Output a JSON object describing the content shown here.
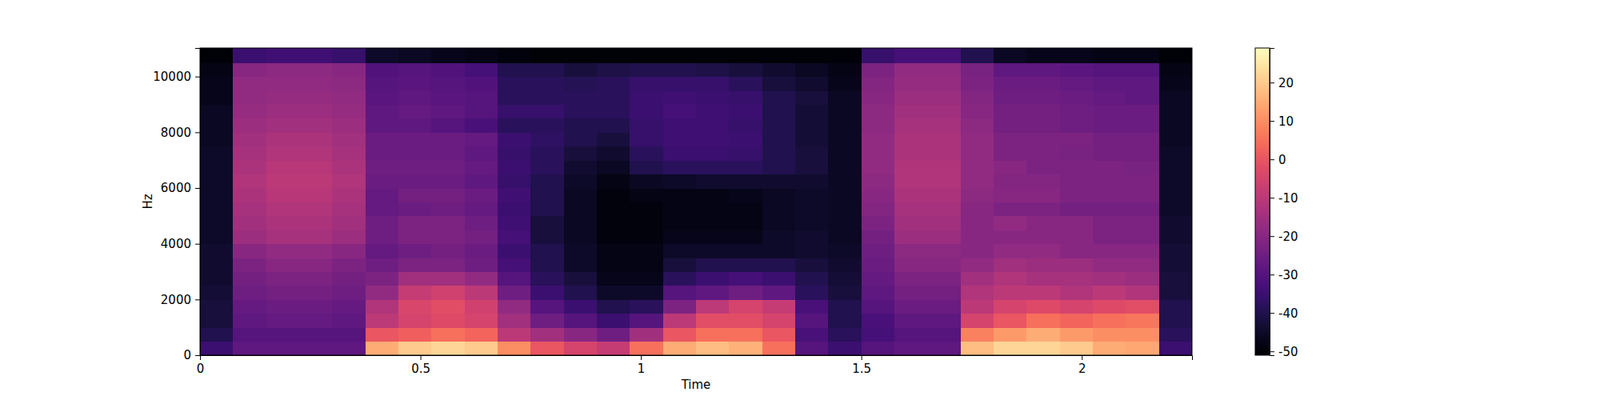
{
  "chart_data": {
    "type": "heatmap",
    "xlabel": "Time",
    "ylabel": "Hz",
    "color": "magma",
    "xlim": [
      0,
      2.25
    ],
    "xticks": [
      0,
      0.5,
      1,
      1.5,
      2
    ],
    "ylim": [
      0,
      11025
    ],
    "yticks": [
      0,
      2000,
      4000,
      6000,
      8000,
      10000
    ],
    "x_bins": [
      0,
      0.075,
      0.15,
      0.225,
      0.3,
      0.375,
      0.45,
      0.525,
      0.6,
      0.675,
      0.75,
      0.825,
      0.9,
      0.975,
      1.05,
      1.125,
      1.2,
      1.275,
      1.35,
      1.425,
      1.5,
      1.575,
      1.65,
      1.725,
      1.8,
      1.875,
      1.95,
      2.025,
      2.1,
      2.175,
      2.25
    ],
    "y_bins": [
      0,
      500,
      1000,
      1500,
      2000,
      2500,
      3000,
      3500,
      4000,
      4500,
      5000,
      5500,
      6000,
      6500,
      7000,
      7500,
      8000,
      8500,
      9000,
      9500,
      10000,
      10500,
      11025
    ],
    "z": [
      [
        -35,
        -28,
        -28,
        -28,
        -28,
        15,
        20,
        22,
        20,
        10,
        0,
        -5,
        -8,
        5,
        15,
        18,
        16,
        5,
        -30,
        -35,
        -30,
        -28,
        -28,
        18,
        22,
        22,
        20,
        15,
        14,
        -35
      ],
      [
        -40,
        -30,
        -30,
        -30,
        -30,
        0,
        2,
        5,
        3,
        -10,
        -15,
        -20,
        -25,
        -15,
        0,
        5,
        5,
        0,
        -32,
        -38,
        -33,
        -30,
        -30,
        8,
        12,
        15,
        12,
        10,
        10,
        -38
      ],
      [
        -42,
        -28,
        -27,
        -27,
        -28,
        -10,
        -5,
        -3,
        -5,
        -15,
        -25,
        -30,
        -35,
        -30,
        -10,
        -2,
        -2,
        -5,
        -30,
        -40,
        -32,
        -28,
        -28,
        -5,
        0,
        5,
        3,
        5,
        6,
        -40
      ],
      [
        -42,
        -27,
        -26,
        -26,
        -27,
        -12,
        -4,
        -2,
        -6,
        -18,
        -30,
        -35,
        -40,
        -38,
        -22,
        -10,
        -5,
        -8,
        -32,
        -40,
        -30,
        -26,
        -26,
        -10,
        -5,
        -3,
        -5,
        -3,
        -2,
        -40
      ],
      [
        -43,
        -25,
        -24,
        -24,
        -25,
        -18,
        -8,
        -6,
        -10,
        -25,
        -35,
        -40,
        -45,
        -45,
        -30,
        -28,
        -25,
        -28,
        -38,
        -42,
        -28,
        -24,
        -24,
        -12,
        -10,
        -10,
        -12,
        -10,
        -12,
        -42
      ],
      [
        -44,
        -24,
        -22,
        -22,
        -24,
        -22,
        -15,
        -15,
        -18,
        -30,
        -38,
        -42,
        -47,
        -47,
        -38,
        -35,
        -33,
        -35,
        -40,
        -43,
        -27,
        -22,
        -22,
        -15,
        -12,
        -14,
        -14,
        -15,
        -16,
        -42
      ],
      [
        -44,
        -22,
        -20,
        -20,
        -22,
        -25,
        -22,
        -22,
        -25,
        -33,
        -40,
        -45,
        -48,
        -48,
        -42,
        -40,
        -40,
        -40,
        -42,
        -44,
        -26,
        -20,
        -20,
        -18,
        -15,
        -16,
        -16,
        -18,
        -18,
        -43
      ],
      [
        -44,
        -20,
        -18,
        -18,
        -20,
        -27,
        -25,
        -24,
        -26,
        -35,
        -40,
        -45,
        -48,
        -48,
        -45,
        -45,
        -45,
        -45,
        -44,
        -45,
        -25,
        -19,
        -19,
        -20,
        -18,
        -18,
        -20,
        -20,
        -20,
        -43
      ],
      [
        -45,
        -16,
        -14,
        -14,
        -16,
        -25,
        -22,
        -22,
        -24,
        -33,
        -42,
        -46,
        -49,
        -49,
        -47,
        -47,
        -47,
        -45,
        -44,
        -46,
        -24,
        -16,
        -16,
        -20,
        -20,
        -20,
        -20,
        -22,
        -22,
        -44
      ],
      [
        -45,
        -15,
        -13,
        -13,
        -15,
        -25,
        -22,
        -22,
        -25,
        -34,
        -42,
        -46,
        -49,
        -49,
        -48,
        -48,
        -48,
        -46,
        -45,
        -46,
        -22,
        -15,
        -15,
        -20,
        -18,
        -20,
        -20,
        -22,
        -22,
        -44
      ],
      [
        -45,
        -14,
        -12,
        -12,
        -14,
        -27,
        -26,
        -25,
        -27,
        -35,
        -40,
        -46,
        -49,
        -49,
        -48,
        -48,
        -48,
        -46,
        -45,
        -46,
        -21,
        -14,
        -14,
        -20,
        -22,
        -22,
        -24,
        -24,
        -24,
        -45
      ],
      [
        -45,
        -13,
        -11,
        -11,
        -13,
        -27,
        -24,
        -24,
        -26,
        -34,
        -40,
        -46,
        -49,
        -48,
        -48,
        -48,
        -47,
        -46,
        -45,
        -46,
        -20,
        -13,
        -13,
        -19,
        -20,
        -20,
        -22,
        -22,
        -22,
        -45
      ],
      [
        -45,
        -12,
        -10,
        -10,
        -12,
        -26,
        -26,
        -26,
        -28,
        -36,
        -40,
        -45,
        -48,
        -46,
        -45,
        -44,
        -44,
        -44,
        -44,
        -46,
        -19,
        -12,
        -12,
        -18,
        -21,
        -21,
        -22,
        -22,
        -22,
        -45
      ],
      [
        -45,
        -13,
        -11,
        -11,
        -13,
        -25,
        -25,
        -25,
        -27,
        -35,
        -38,
        -44,
        -46,
        -40,
        -38,
        -38,
        -38,
        -40,
        -42,
        -46,
        -18,
        -12,
        -12,
        -18,
        -20,
        -22,
        -22,
        -22,
        -23,
        -45
      ],
      [
        -45,
        -14,
        -12,
        -12,
        -14,
        -26,
        -26,
        -26,
        -28,
        -36,
        -38,
        -42,
        -44,
        -38,
        -35,
        -35,
        -36,
        -40,
        -42,
        -46,
        -18,
        -13,
        -13,
        -18,
        -22,
        -22,
        -23,
        -24,
        -24,
        -45
      ],
      [
        -46,
        -15,
        -13,
        -13,
        -15,
        -26,
        -26,
        -26,
        -27,
        -35,
        -37,
        -40,
        -42,
        -36,
        -34,
        -34,
        -35,
        -40,
        -43,
        -46,
        -18,
        -13,
        -13,
        -18,
        -22,
        -22,
        -22,
        -24,
        -24,
        -46
      ],
      [
        -46,
        -16,
        -15,
        -15,
        -16,
        -28,
        -28,
        -30,
        -32,
        -38,
        -38,
        -40,
        -40,
        -36,
        -34,
        -34,
        -36,
        -40,
        -43,
        -46,
        -19,
        -14,
        -14,
        -19,
        -24,
        -24,
        -25,
        -26,
        -26,
        -46
      ],
      [
        -46,
        -17,
        -16,
        -16,
        -17,
        -28,
        -27,
        -28,
        -30,
        -36,
        -36,
        -38,
        -38,
        -35,
        -33,
        -34,
        -35,
        -40,
        -43,
        -46,
        -19,
        -15,
        -15,
        -20,
        -24,
        -24,
        -25,
        -26,
        -26,
        -46
      ],
      [
        -47,
        -18,
        -17,
        -17,
        -18,
        -29,
        -28,
        -29,
        -30,
        -38,
        -38,
        -38,
        -38,
        -35,
        -34,
        -35,
        -36,
        -40,
        -42,
        -46,
        -20,
        -16,
        -16,
        -21,
        -25,
        -25,
        -26,
        -27,
        -28,
        -46
      ],
      [
        -47,
        -18,
        -18,
        -18,
        -19,
        -30,
        -29,
        -30,
        -31,
        -38,
        -38,
        -39,
        -38,
        -36,
        -36,
        -36,
        -38,
        -42,
        -44,
        -47,
        -21,
        -17,
        -17,
        -22,
        -26,
        -26,
        -27,
        -28,
        -28,
        -47
      ],
      [
        -48,
        -20,
        -19,
        -19,
        -20,
        -31,
        -30,
        -31,
        -33,
        -40,
        -40,
        -42,
        -41,
        -40,
        -40,
        -41,
        -42,
        -44,
        -46,
        -48,
        -22,
        -18,
        -18,
        -23,
        -28,
        -28,
        -29,
        -30,
        -30,
        -48
      ],
      [
        -50,
        -35,
        -34,
        -34,
        -36,
        -45,
        -46,
        -47,
        -48,
        -49,
        -50,
        -50,
        -50,
        -50,
        -50,
        -50,
        -50,
        -50,
        -50,
        -50,
        -36,
        -33,
        -33,
        -40,
        -46,
        -47,
        -47,
        -48,
        -48,
        -50
      ]
    ],
    "colorbar": {
      "zlim": [
        -51,
        29
      ],
      "ticks": [
        -50,
        -40,
        -30,
        -20,
        -10,
        0,
        10,
        20
      ]
    }
  }
}
